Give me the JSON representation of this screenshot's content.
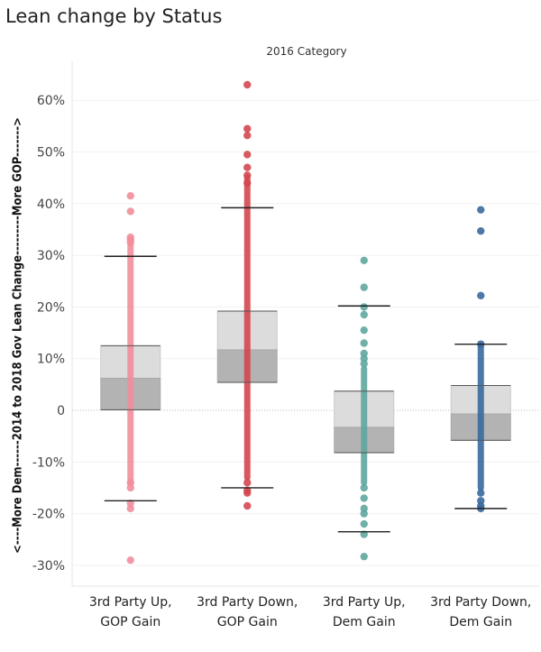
{
  "page": {
    "title": "Lean change by Status"
  },
  "chart_data": {
    "type": "boxplot",
    "title": "Lean change by Status",
    "column_header": "2016 Category",
    "ylabel": "<----More Dem------2014 to 2018 Gov Lean Change---------More GOP------->",
    "ylim": [
      -33,
      67
    ],
    "yticks": [
      -30,
      -20,
      -10,
      0,
      10,
      20,
      30,
      40,
      50,
      60
    ],
    "ytick_labels": [
      "-30%",
      "-20%",
      "-10%",
      "0",
      "10%",
      "20%",
      "30%",
      "40%",
      "50%",
      "60%"
    ],
    "grid": true,
    "zero_line": true,
    "categories": [
      {
        "line1": "3rd Party Up,",
        "line2": "GOP Gain",
        "color": "#f28e9b",
        "whisker_low": -17.5,
        "q1": 0.1,
        "median": 6.2,
        "q3": 12.5,
        "whisker_high": 29.8,
        "dense_range": [
          -14,
          32
        ],
        "points": [
          41.5,
          38.5,
          33.5,
          33,
          32.5,
          -14,
          -15,
          -18,
          -19,
          -29
        ]
      },
      {
        "line1": "3rd Party Down,",
        "line2": "GOP Gain",
        "color": "#d4474f",
        "whisker_low": -15,
        "q1": 5.4,
        "median": 11.7,
        "q3": 19.2,
        "whisker_high": 39.2,
        "dense_range": [
          -13,
          45
        ],
        "points": [
          63,
          54.5,
          53.2,
          49.5,
          47,
          45.5,
          44,
          -14,
          -15.5,
          -16,
          -18.5
        ]
      },
      {
        "line1": "3rd Party Up,",
        "line2": "Dem Gain",
        "color": "#5fa79f",
        "whisker_low": -23.5,
        "q1": -8.2,
        "median": -3.3,
        "q3": 3.7,
        "whisker_high": 20.2,
        "dense_range": [
          -14,
          8
        ],
        "points": [
          29,
          23.8,
          20,
          18.5,
          15.5,
          13,
          11,
          10,
          9,
          -15,
          -17,
          -19,
          -20,
          -22,
          -24,
          -28.3
        ]
      },
      {
        "line1": "3rd Party Down,",
        "line2": "Dem Gain",
        "color": "#3a6a9f",
        "whisker_low": -19,
        "q1": -5.8,
        "median": -0.7,
        "q3": 4.8,
        "whisker_high": 12.8,
        "dense_range": [
          -15,
          12.5
        ],
        "points": [
          38.8,
          34.7,
          22.2,
          12.8,
          -16,
          -17.5,
          -18.5,
          -19
        ]
      }
    ],
    "legend": "none"
  }
}
